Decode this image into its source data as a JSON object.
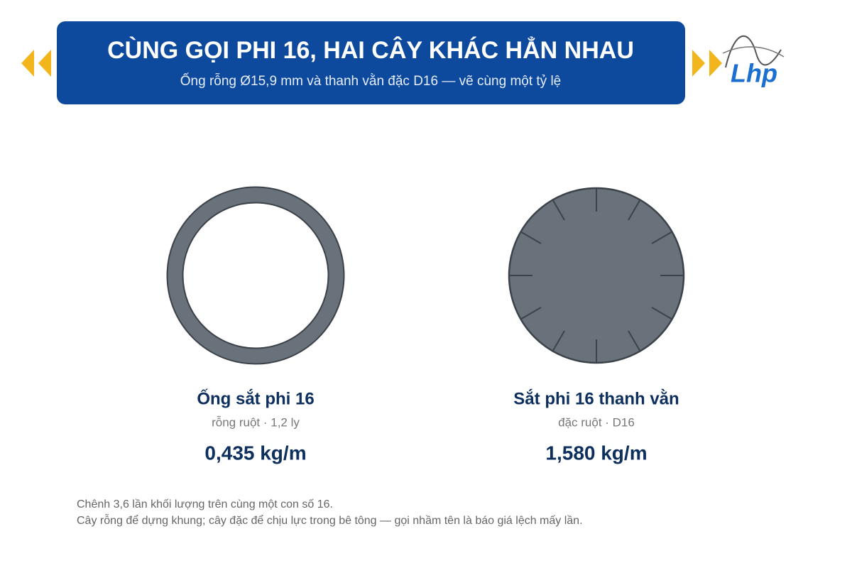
{
  "header": {
    "title": "CÙNG GỌI PHI 16, HAI CÂY KHÁC HẲN NHAU",
    "subtitle": "Ống rỗng Ø15,9 mm và thanh vằn đặc D16 — vẽ cùng một tỷ lệ"
  },
  "logo": {
    "text": "Lhp"
  },
  "items": [
    {
      "name": "Ống sắt phi 16",
      "detail": "rỗng ruột · 1,2 ly",
      "weight": "0,435 kg/m"
    },
    {
      "name": "Sắt phi 16 thanh vằn",
      "detail": "đặc ruột · D16",
      "weight": "1,580 kg/m"
    }
  ],
  "footer": {
    "lines": [
      "Chênh 3,6 lần khối lượng trên cùng một con số 16.",
      "Cây rỗng để dựng khung; cây đặc để chịu lực trong bê tông — gọi nhầm tên là báo giá lệch mấy lần."
    ]
  }
}
